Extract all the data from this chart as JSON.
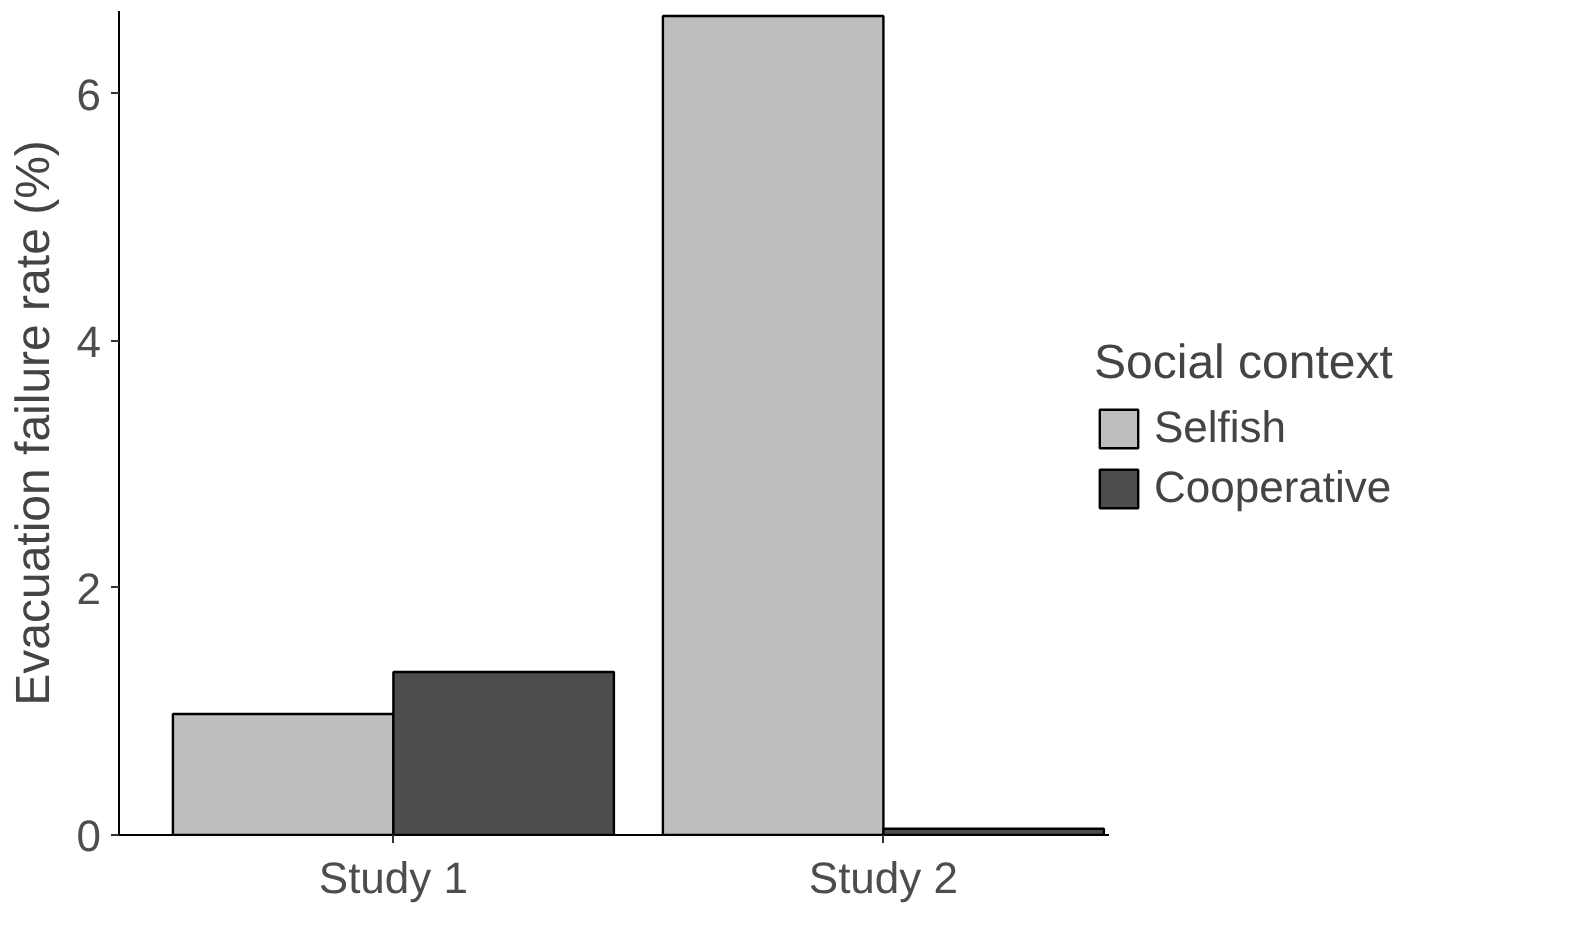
{
  "chart_data": {
    "type": "bar",
    "ylabel": "Evacuation failure rate (%)",
    "legend_title": "Social context",
    "categories": [
      "Study 1",
      "Study 2"
    ],
    "series": [
      {
        "name": "Selfish",
        "color": "#bebebe",
        "values": [
          0.98,
          6.63
        ]
      },
      {
        "name": "Cooperative",
        "color": "#4d4d4d",
        "values": [
          1.32,
          0.05
        ]
      }
    ],
    "ylim": [
      0,
      6.67
    ],
    "yticks": [
      0,
      2,
      4,
      6
    ],
    "grid": false,
    "legend": "right"
  }
}
